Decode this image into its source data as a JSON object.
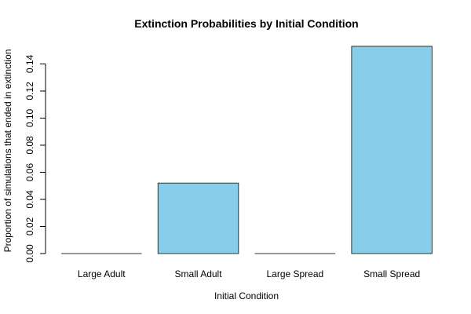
{
  "chart_data": {
    "type": "bar",
    "title": "Extinction Probabilities by Initial Condition",
    "x_label": "Initial Condition",
    "y_label": "Proportion of simulations that ended in extinction",
    "categories": [
      "Large Adult",
      "Small Adult",
      "Large Spread",
      "Small Spread"
    ],
    "values": [
      0,
      0.052,
      0,
      0.153
    ],
    "color": "#87ceeb",
    "ylim": [
      0,
      0.153
    ],
    "yticks": [
      {
        "value": 0,
        "label": "0.00"
      },
      {
        "value": 0.02,
        "label": "0.02"
      },
      {
        "value": 0.04,
        "label": "0.04"
      },
      {
        "value": 0.06,
        "label": "0.06"
      },
      {
        "value": 0.08,
        "label": "0.08"
      },
      {
        "value": 0.1,
        "label": "0.10"
      },
      {
        "value": 0.12,
        "label": "0.12"
      },
      {
        "value": 0.14,
        "label": "0.14"
      }
    ]
  }
}
